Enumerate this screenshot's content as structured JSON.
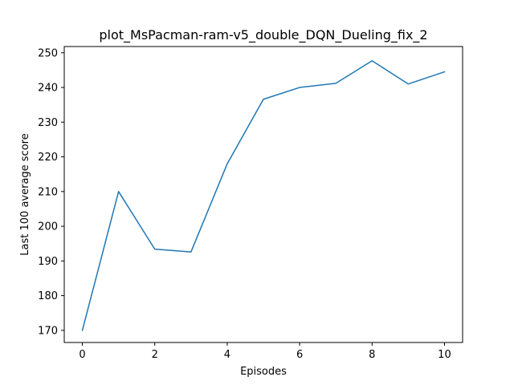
{
  "chart_data": {
    "type": "line",
    "title": "plot_MsPacman-ram-v5_double_DQN_Dueling_fix_2",
    "xlabel": "Episodes",
    "ylabel": "Last 100 average score",
    "xlim": [
      -0.5,
      10.5
    ],
    "ylim": [
      166.5,
      251.8
    ],
    "xticks": [
      0,
      2,
      4,
      6,
      8,
      10
    ],
    "yticks": [
      170,
      180,
      190,
      200,
      210,
      220,
      230,
      240,
      250
    ],
    "grid": false,
    "series": [
      {
        "name": "",
        "color": "#1f77b4",
        "x": [
          0,
          1,
          2,
          3,
          4,
          5,
          6,
          7,
          8,
          9,
          10
        ],
        "y": [
          170.0,
          210.0,
          193.4,
          192.6,
          218.0,
          236.6,
          240.0,
          241.2,
          247.7,
          241.0,
          244.5
        ]
      }
    ]
  }
}
